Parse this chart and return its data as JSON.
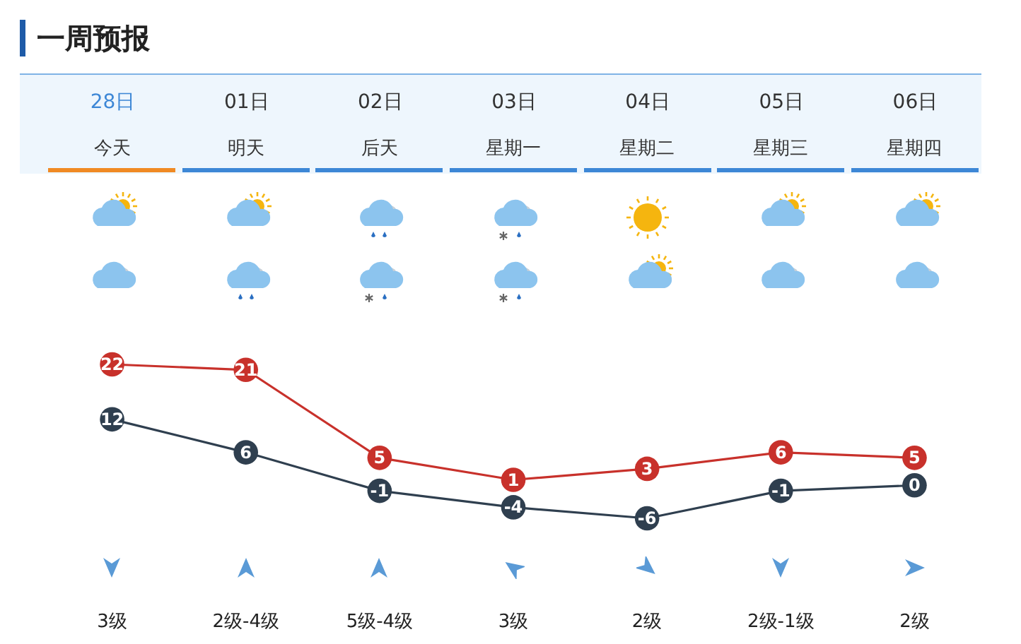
{
  "chart_data": {
    "type": "line",
    "title": "一周预报",
    "categories": [
      "28日",
      "01日",
      "02日",
      "03日",
      "04日",
      "05日",
      "06日"
    ],
    "series": [
      {
        "color": "#c8312b",
        "values": [
          22,
          21,
          5,
          1,
          3,
          6,
          5
        ]
      },
      {
        "color": "#2f3f4f",
        "values": [
          12,
          6,
          -1,
          -4,
          -6,
          -1,
          0
        ]
      }
    ],
    "data_labels": true,
    "marker": "circle",
    "line_style": "solid",
    "grid": false,
    "legend": false,
    "tick_labels": "x",
    "annotations": [
      "今天",
      "明天",
      "后天",
      "星期一",
      "星期二",
      "星期三",
      "星期四",
      "3级",
      "2级-4级",
      "5级-4级",
      "3级",
      "2级",
      "2级-1级",
      "2级"
    ]
  }
}
